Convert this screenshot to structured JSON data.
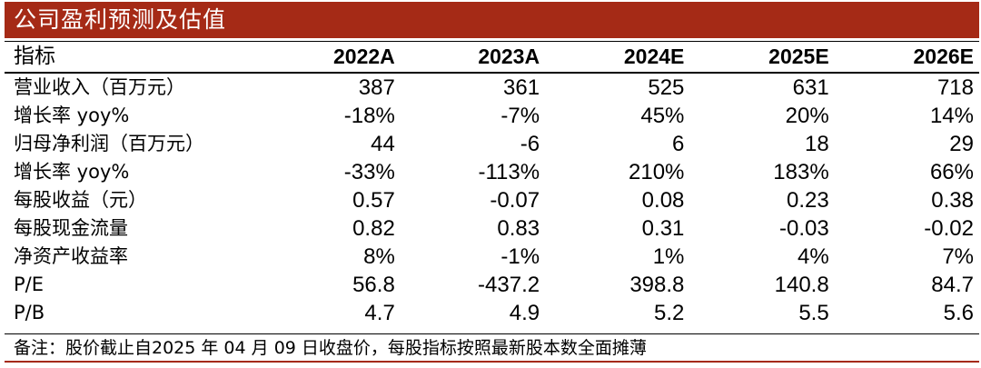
{
  "title": "公司盈利预测及估值",
  "table": {
    "header_label": "指标",
    "columns": [
      "2022A",
      "2023A",
      "2024E",
      "2025E",
      "2026E"
    ],
    "rows": [
      {
        "label": "营业收入（百万元）",
        "values": [
          "387",
          "361",
          "525",
          "631",
          "718"
        ]
      },
      {
        "label": "增长率 yoy%",
        "values": [
          "-18%",
          "-7%",
          "45%",
          "20%",
          "14%"
        ]
      },
      {
        "label": "归母净利润（百万元）",
        "values": [
          "44",
          "-6",
          "6",
          "18",
          "29"
        ]
      },
      {
        "label": "增长率 yoy%",
        "values": [
          "-33%",
          "-113%",
          "210%",
          "183%",
          "66%"
        ]
      },
      {
        "label": "每股收益（元）",
        "values": [
          "0.57",
          "-0.07",
          "0.08",
          "0.23",
          "0.38"
        ]
      },
      {
        "label": "每股现金流量",
        "values": [
          "0.82",
          "0.83",
          "0.31",
          "-0.03",
          "-0.02"
        ]
      },
      {
        "label": "净资产收益率",
        "values": [
          "8%",
          "-1%",
          "1%",
          "4%",
          "7%"
        ]
      },
      {
        "label": "P/E",
        "values": [
          "56.8",
          "-437.2",
          "398.8",
          "140.8",
          "84.7"
        ]
      },
      {
        "label": "P/B",
        "values": [
          "4.7",
          "4.9",
          "5.2",
          "5.5",
          "5.6"
        ]
      }
    ]
  },
  "note": "备注：股价截止自2025 年 04 月 09 日收盘价，每股指标按照最新股本数全面摊薄",
  "colors": {
    "title_bar": "#a52a16",
    "title_text": "#ffffff"
  }
}
